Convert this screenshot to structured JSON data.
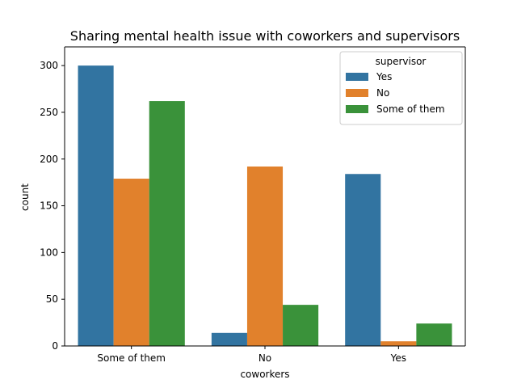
{
  "chart_data": {
    "type": "bar",
    "title": "Sharing mental health issue with coworkers and supervisors",
    "xlabel": "coworkers",
    "ylabel": "count",
    "categories": [
      "Some of them",
      "No",
      "Yes"
    ],
    "ylim": [
      0,
      320
    ],
    "yticks": [
      0,
      50,
      100,
      150,
      200,
      250,
      300
    ],
    "legend": {
      "title": "supervisor",
      "placement": "top-right"
    },
    "series": [
      {
        "name": "Yes",
        "color": "#3274a1",
        "values": [
          300,
          14,
          184
        ]
      },
      {
        "name": "No",
        "color": "#e1812c",
        "values": [
          179,
          192,
          5
        ]
      },
      {
        "name": "Some of them",
        "color": "#3a923a",
        "values": [
          262,
          44,
          24
        ]
      }
    ]
  }
}
